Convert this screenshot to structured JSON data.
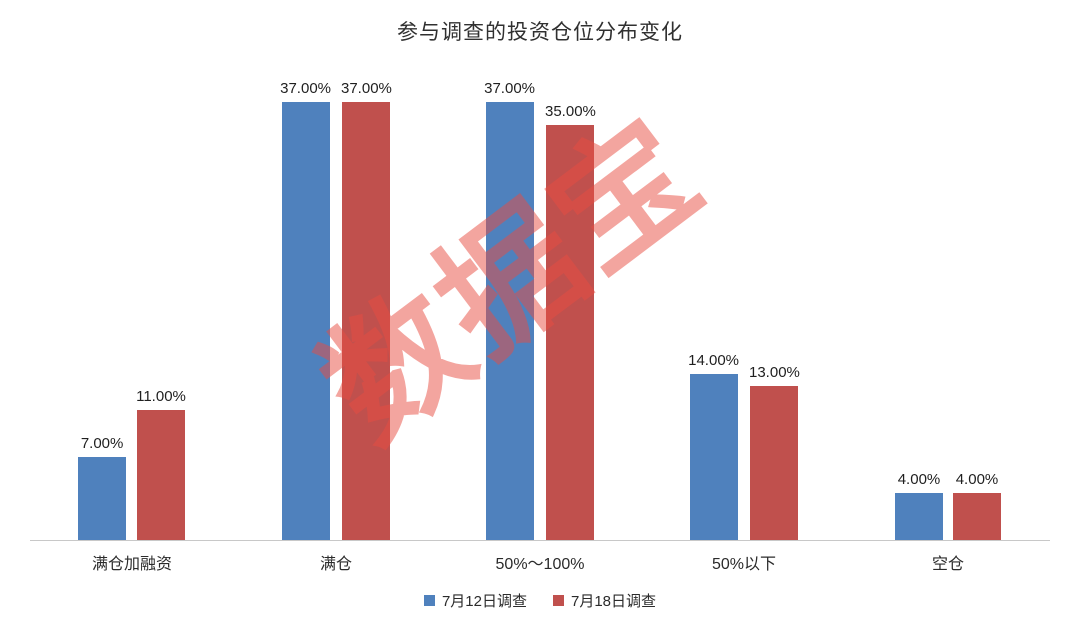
{
  "title": "参与调查的投资仓位分布变化",
  "watermark": "数据宝",
  "colors": {
    "series1": "#4F81BD",
    "series2": "#C0504D",
    "watermark": "#E94D42",
    "axis_line": "#C8C8C8"
  },
  "chart_data": {
    "type": "bar",
    "title": "参与调查的投资仓位分布变化",
    "categories": [
      "满仓加融资",
      "满仓",
      "50%～100%",
      "50%以下",
      "空仓"
    ],
    "series": [
      {
        "name": "7月12日调查",
        "color": "#4F81BD",
        "values": [
          7,
          37,
          37,
          14,
          4
        ],
        "labels": [
          "7.00%",
          "37.00%",
          "37.00%",
          "14.00%",
          "4.00%"
        ]
      },
      {
        "name": "7月18日调查",
        "color": "#C0504D",
        "values": [
          11,
          37,
          35,
          13,
          4
        ],
        "labels": [
          "11.00%",
          "37.00%",
          "35.00%",
          "13.00%",
          "4.00%"
        ]
      }
    ],
    "xlabel": "",
    "ylabel": "",
    "ylim": [
      0,
      40
    ],
    "grid": false,
    "legend_position": "bottom"
  }
}
